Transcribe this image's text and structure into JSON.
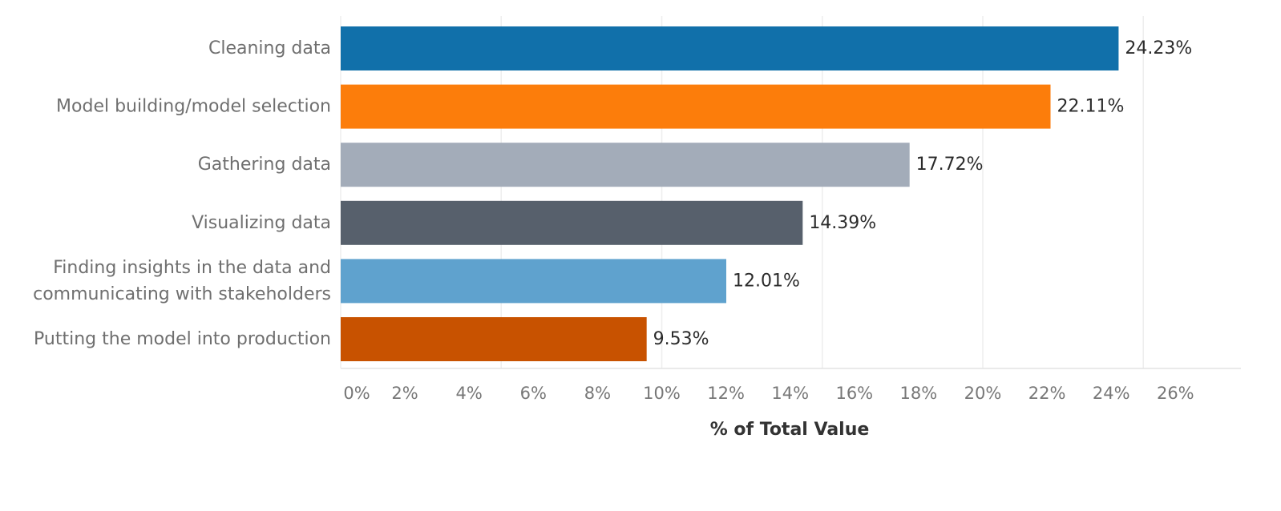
{
  "chart_data": {
    "type": "bar",
    "orientation": "horizontal",
    "categories": [
      "Cleaning data",
      "Model building/model selection",
      "Gathering data",
      "Visualizing data",
      "Finding insights in the data and communicating with stakeholders",
      "Putting the model into production"
    ],
    "category_lines": [
      [
        "Cleaning data"
      ],
      [
        "Model building/model selection"
      ],
      [
        "Gathering data"
      ],
      [
        "Visualizing data"
      ],
      [
        "Finding insights in the data and",
        "communicating with stakeholders"
      ],
      [
        "Putting the model into production"
      ]
    ],
    "values": [
      24.23,
      22.11,
      17.72,
      14.39,
      12.01,
      9.53
    ],
    "value_labels": [
      "24.23%",
      "22.11%",
      "17.72%",
      "14.39%",
      "12.01%",
      "9.53%"
    ],
    "colors": [
      "#1170aa",
      "#fc7d0b",
      "#a3acb9",
      "#57606c",
      "#5fa2ce",
      "#c85200"
    ],
    "xlabel": "% of Total Value",
    "x_ticks": [
      0,
      2,
      4,
      6,
      8,
      10,
      12,
      14,
      16,
      18,
      20,
      22,
      24,
      26
    ],
    "x_tick_labels": [
      "0%",
      "2%",
      "4%",
      "6%",
      "8%",
      "10%",
      "12%",
      "14%",
      "16%",
      "18%",
      "20%",
      "22%",
      "24%",
      "26%"
    ],
    "xlim": [
      0,
      28
    ],
    "grid": true,
    "legend": "none"
  }
}
